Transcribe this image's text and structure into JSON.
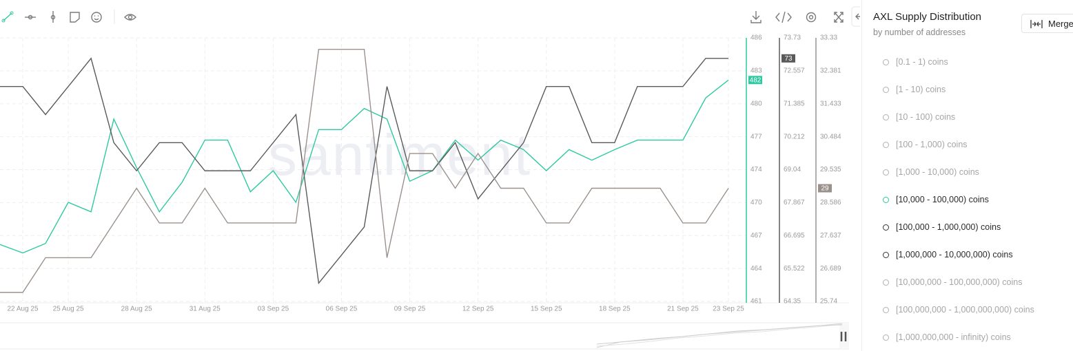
{
  "chart_data": {
    "type": "line",
    "watermark": "santiment",
    "categories": [
      null,
      "22 Aug 25",
      null,
      "25 Aug 25",
      null,
      null,
      "28 Aug 25",
      null,
      null,
      "31 Aug 25",
      null,
      null,
      "03 Sep 25",
      null,
      null,
      "06 Sep 25",
      null,
      null,
      "09 Sep 25",
      null,
      null,
      "12 Sep 25",
      null,
      null,
      "15 Sep 25",
      null,
      null,
      "18 Sep 25",
      null,
      null,
      "21 Sep 25",
      null,
      "23 Sep 25"
    ],
    "ylim": [
      461,
      486
    ],
    "yticks": [
      461,
      {
        "value": 464.125,
        "label": "464"
      },
      {
        "value": 467.25,
        "label": "467"
      },
      {
        "value": 470.375,
        "label": "470"
      },
      {
        "value": 473.5,
        "label": "474"
      },
      {
        "value": 476.625,
        "label": "477"
      },
      {
        "value": 479.75,
        "label": "480"
      },
      {
        "value": 482.875,
        "label": "483"
      },
      486
    ],
    "y2lim": [
      64.35,
      73.73
    ],
    "y2ticks": [
      64.35,
      {
        "value": 65.5225,
        "label": "65.522"
      },
      66.695,
      {
        "value": 67.8675,
        "label": "67.867"
      },
      69.04,
      {
        "value": 70.2125,
        "label": "70.212"
      },
      71.385,
      {
        "value": 72.5575,
        "label": "72.557"
      },
      73.73
    ],
    "y3lim": [
      25.74,
      33.33
    ],
    "y3ticks": [
      25.74,
      {
        "value": 26.68875,
        "label": "26.689"
      },
      {
        "value": 27.6375,
        "label": "27.637"
      },
      {
        "value": 28.58625,
        "label": "28.586"
      },
      29.535,
      {
        "value": 30.48375,
        "label": "30.484"
      },
      {
        "value": 31.4325,
        "label": "31.433"
      },
      {
        "value": 32.38125,
        "label": "32.381"
      },
      33.33
    ],
    "grid": true,
    "series": [
      {
        "name": "[10,000 - 100,000) coins",
        "color": "#2ec9a0",
        "axis": "y",
        "values": [
          466.4,
          465.6,
          466.5,
          470.4,
          469.5,
          478.3,
          473.7,
          469.5,
          472.3,
          476.3,
          476.3,
          471.4,
          473.4,
          470.4,
          477.3,
          477.3,
          479.3,
          478.3,
          472.4,
          473.4,
          476.3,
          474.4,
          476.3,
          475.4,
          473.4,
          475.4,
          474.4,
          475.4,
          476.3,
          476.3,
          476.3,
          480.3,
          482
        ]
      },
      {
        "name": "[100,000 - 1,000,000) coins",
        "color": "#5a5a5a",
        "axis": "y2",
        "values": [
          72,
          72,
          71,
          72,
          73,
          70,
          69,
          70,
          70,
          69,
          69,
          69,
          70,
          71,
          65,
          66,
          67,
          72,
          69,
          69,
          70,
          68,
          69,
          70,
          72,
          72,
          70,
          70,
          72,
          72,
          72,
          73,
          73
        ]
      },
      {
        "name": "[1,000,000 - 10,000,000) coins",
        "color": "#9a918c",
        "axis": "y3",
        "values": [
          26,
          26,
          27,
          27,
          27,
          28,
          29,
          28,
          28,
          29,
          28,
          28,
          28,
          28,
          33,
          33,
          33,
          27,
          30,
          30,
          29,
          30,
          29,
          29,
          28,
          28,
          29,
          29,
          29,
          29,
          28,
          28,
          29
        ]
      }
    ]
  },
  "sidebar": {
    "title": "AXL Supply Distribution",
    "subtitle": "by number of addresses",
    "button": "Merge",
    "items_above": [
      "[0.1 - 1) coins",
      "[1 - 10) coins",
      "[10 - 100) coins",
      "[100 - 1,000) coins",
      "[1,000 - 10,000) coins"
    ],
    "items_below": [
      "[10,000,000 - 100,000,000) coins",
      "[100,000,000 - 1,000,000,000) coins",
      "[1,000,000,000 - infinity) coins"
    ]
  }
}
